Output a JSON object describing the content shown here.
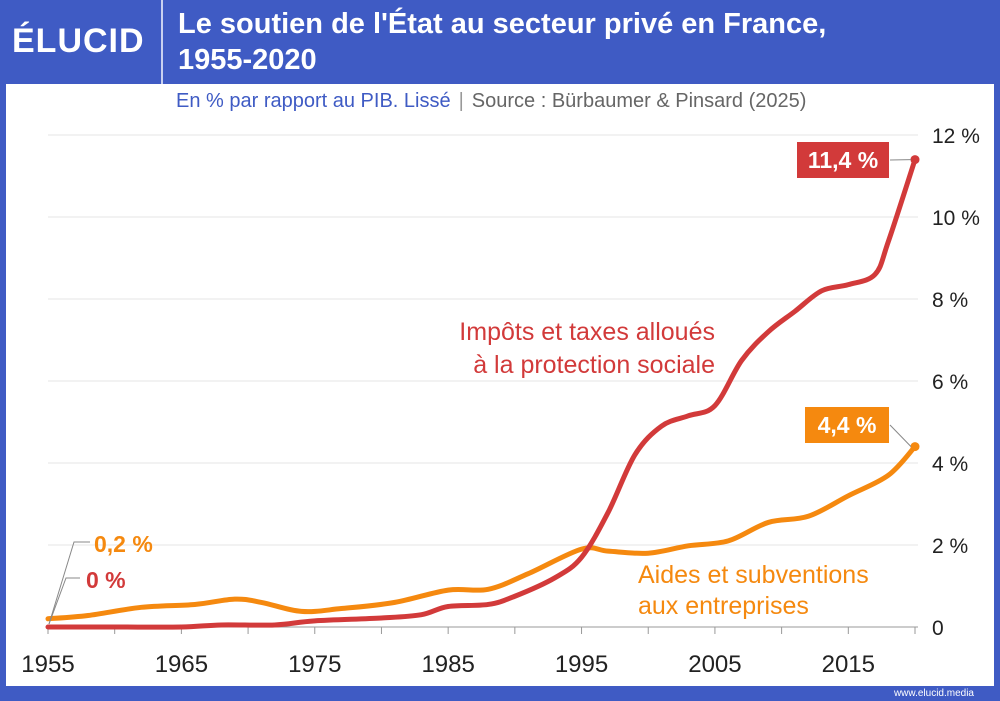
{
  "brand": "ÉLUCID",
  "title_line1": "Le soutien de l'État au secteur privé en France,",
  "title_line2": "1955-2020",
  "subtitle": "En % par rapport au PIB. Lissé",
  "separator": "|",
  "source": "Source : Bürbaumer & Pinsard (2025)",
  "footer": "www.elucid.media",
  "colors": {
    "brand": "#3f5bc4",
    "red": "#d23a3a",
    "orange": "#f5890f"
  },
  "chart_data": {
    "type": "line",
    "xlim": [
      1955,
      2020
    ],
    "ylim": [
      0,
      12
    ],
    "grid": true,
    "x_tick_labels": [
      "1955",
      "1965",
      "1975",
      "1985",
      "1995",
      "2005",
      "2015"
    ],
    "y_tick_labels": [
      "0",
      "2 %",
      "4 %",
      "6 %",
      "8 %",
      "10 %",
      "12 %"
    ],
    "y_ticks": [
      0,
      2,
      4,
      6,
      8,
      10,
      12
    ],
    "x_ticks": [
      1955,
      1965,
      1975,
      1985,
      1995,
      2005,
      2015
    ],
    "series": [
      {
        "name": "Impôts et taxes alloués à la protection sociale",
        "name_lines": [
          "Impôts et taxes alloués",
          "à la protection sociale"
        ],
        "color": "#d23a3a",
        "start_label": "0 %",
        "end_label": "11,4 %",
        "x": [
          1955,
          1960,
          1965,
          1968,
          1972,
          1975,
          1980,
          1983,
          1985,
          1988,
          1990,
          1993,
          1995,
          1997,
          1999,
          2001,
          2003,
          2005,
          2007,
          2009,
          2011,
          2013,
          2015,
          2017,
          2018,
          2020
        ],
        "y": [
          0,
          0,
          0,
          0.05,
          0.05,
          0.15,
          0.22,
          0.3,
          0.5,
          0.55,
          0.75,
          1.2,
          1.7,
          2.8,
          4.2,
          4.9,
          5.15,
          5.4,
          6.5,
          7.2,
          7.7,
          8.2,
          8.35,
          8.6,
          9.4,
          11.4
        ]
      },
      {
        "name": "Aides et subventions aux entreprises",
        "name_lines": [
          "Aides et subventions",
          "aux entreprises"
        ],
        "color": "#f5890f",
        "start_label": "0,2 %",
        "end_label": "4,4 %",
        "x": [
          1955,
          1958,
          1962,
          1966,
          1969,
          1971,
          1974,
          1977,
          1981,
          1985,
          1988,
          1991,
          1995,
          1997,
          2000,
          2003,
          2006,
          2009,
          2012,
          2015,
          2018,
          2020
        ],
        "y": [
          0.2,
          0.28,
          0.48,
          0.55,
          0.68,
          0.6,
          0.38,
          0.45,
          0.6,
          0.9,
          0.92,
          1.3,
          1.9,
          1.85,
          1.8,
          1.98,
          2.1,
          2.55,
          2.7,
          3.2,
          3.7,
          4.4
        ]
      }
    ]
  }
}
